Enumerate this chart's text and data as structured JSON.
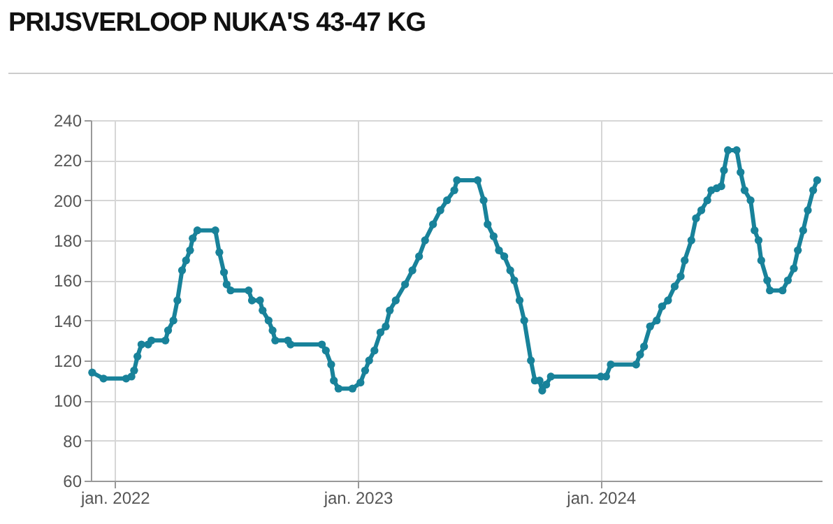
{
  "chart_data": {
    "type": "line",
    "title": "PRIJSVERLOOP NUKA'S 43-47 KG",
    "x": [
      "2021-11-28",
      "2021-12-15",
      "2022-01-18",
      "2022-01-26",
      "2022-01-30",
      "2022-02-04",
      "2022-02-10",
      "2022-02-20",
      "2022-02-25",
      "2022-03-18",
      "2022-03-22",
      "2022-03-30",
      "2022-04-05",
      "2022-04-12",
      "2022-04-18",
      "2022-04-24",
      "2022-04-28",
      "2022-05-05",
      "2022-06-01",
      "2022-06-07",
      "2022-06-14",
      "2022-06-18",
      "2022-06-24",
      "2022-07-21",
      "2022-07-26",
      "2022-08-07",
      "2022-08-11",
      "2022-08-20",
      "2022-08-26",
      "2022-08-30",
      "2022-09-18",
      "2022-09-22",
      "2022-11-08",
      "2022-11-14",
      "2022-11-22",
      "2022-11-26",
      "2022-12-03",
      "2022-12-24",
      "2023-01-05",
      "2023-01-12",
      "2023-01-18",
      "2023-01-26",
      "2023-02-04",
      "2023-02-12",
      "2023-02-18",
      "2023-02-27",
      "2023-03-13",
      "2023-03-24",
      "2023-04-03",
      "2023-04-12",
      "2023-04-24",
      "2023-05-05",
      "2023-05-15",
      "2023-05-26",
      "2023-05-30",
      "2023-06-30",
      "2023-07-09",
      "2023-07-15",
      "2023-07-24",
      "2023-08-01",
      "2023-08-09",
      "2023-08-18",
      "2023-08-24",
      "2023-09-01",
      "2023-09-08",
      "2023-09-18",
      "2023-09-24",
      "2023-10-01",
      "2023-10-05",
      "2023-10-11",
      "2023-10-18",
      "2024-01-01",
      "2024-01-09",
      "2024-01-16",
      "2024-02-23",
      "2024-02-29",
      "2024-03-06",
      "2024-03-15",
      "2024-03-25",
      "2024-04-02",
      "2024-04-11",
      "2024-04-21",
      "2024-04-30",
      "2024-05-06",
      "2024-05-16",
      "2024-05-23",
      "2024-05-31",
      "2024-06-09",
      "2024-06-15",
      "2024-06-23",
      "2024-06-30",
      "2024-07-04",
      "2024-07-10",
      "2024-07-23",
      "2024-07-29",
      "2024-08-04",
      "2024-08-13",
      "2024-08-19",
      "2024-08-25",
      "2024-08-29",
      "2024-09-07",
      "2024-09-11",
      "2024-09-30",
      "2024-10-08",
      "2024-10-17",
      "2024-10-23",
      "2024-10-31",
      "2024-11-07",
      "2024-11-15",
      "2024-11-21"
    ],
    "series": [
      {
        "color": "#18829a",
        "values": [
          114,
          111,
          111,
          112,
          115,
          122,
          128,
          128,
          130,
          130,
          135,
          140,
          150,
          165,
          170,
          175,
          181,
          185,
          185,
          174,
          164,
          158,
          155,
          155,
          150,
          150,
          145,
          140,
          135,
          130,
          130,
          128,
          128,
          125,
          118,
          110,
          106,
          106,
          109,
          115,
          120,
          125,
          134,
          137,
          145,
          150,
          158,
          165,
          172,
          180,
          188,
          195,
          200,
          205,
          210,
          210,
          200,
          188,
          182,
          175,
          172,
          165,
          160,
          150,
          140,
          120,
          110,
          110,
          105,
          108,
          112,
          112,
          112,
          118,
          118,
          123,
          127,
          137,
          140,
          147,
          150,
          157,
          162,
          170,
          180,
          191,
          195,
          200,
          205,
          206,
          207,
          215,
          225,
          225,
          214,
          205,
          200,
          185,
          180,
          170,
          160,
          155,
          155,
          160,
          166,
          175,
          185,
          195,
          205,
          210
        ]
      }
    ],
    "xlim": [
      "2021-11-26",
      "2024-11-28"
    ],
    "xticks": [
      {
        "value": "2022-01-01",
        "label": "jan. 2022"
      },
      {
        "value": "2023-01-01",
        "label": "jan. 2023"
      },
      {
        "value": "2024-01-01",
        "label": "jan. 2024"
      }
    ],
    "ylim": [
      60,
      240
    ],
    "yticks": [
      60,
      80,
      100,
      120,
      140,
      160,
      180,
      200,
      220,
      240
    ],
    "grid": true,
    "marker": "circle",
    "line_style": "solid"
  }
}
